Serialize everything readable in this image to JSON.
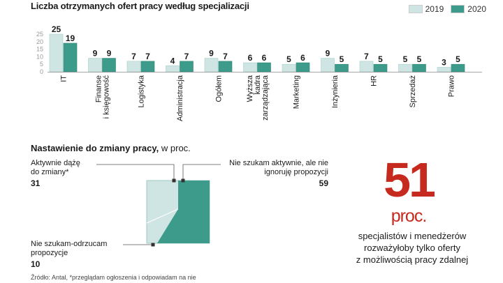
{
  "title": "Liczba otrzymanych  ofert pracy według specjalizacji",
  "legend": {
    "s2019": "2019",
    "s2020": "2020"
  },
  "colors": {
    "c2019": "#cfe5e3",
    "c2020": "#3c9b8a",
    "accent": "#c62a1e",
    "tick": "#999999"
  },
  "chart_data": {
    "type": "bar",
    "title": "Liczba otrzymanych  ofert pracy według specjalizacji",
    "categories": [
      "IT",
      "Finanse i księgowość",
      "Logistyka",
      "Administracja",
      "Ogółem",
      "Wyższa kadra zarządzająca",
      "Marketing",
      "Inżynieria",
      "HR",
      "Sprzedaż",
      "Prawo"
    ],
    "category_lines": [
      [
        "IT"
      ],
      [
        "Finanse",
        "i księgowość"
      ],
      [
        "Logistyka"
      ],
      [
        "Administracja"
      ],
      [
        "Ogółem"
      ],
      [
        "Wyższa",
        "kadra",
        "zarządzająca"
      ],
      [
        "Marketing"
      ],
      [
        "Inżynieria"
      ],
      [
        "HR"
      ],
      [
        "Sprzedaż"
      ],
      [
        "Prawo"
      ]
    ],
    "series": [
      {
        "name": "2019",
        "values": [
          25,
          9,
          7,
          4,
          9,
          6,
          5,
          9,
          7,
          5,
          3
        ]
      },
      {
        "name": "2020",
        "values": [
          19,
          9,
          7,
          7,
          7,
          6,
          6,
          5,
          5,
          5,
          5
        ]
      }
    ],
    "yticks": [
      "25",
      "20",
      "15",
      "10",
      "5",
      "0"
    ],
    "ylim": [
      0,
      25
    ],
    "legend_position": "top-right"
  },
  "attitude": {
    "heading_bold": "Nastawienie do zmiany pracy,",
    "heading_rest": " w proc.",
    "active_line1": "Aktywnie dążę",
    "active_line2": "do zmiany*",
    "active_value": "31",
    "passive_line1": "Nie szukam aktywnie, ale nie",
    "passive_line2": "ignoruję propozycji",
    "passive_value": "59",
    "reject_line1": "Nie szukam-odrzucam",
    "reject_line2": "propozycje",
    "reject_value": "10",
    "chart_data": {
      "type": "pie",
      "categories": [
        "Aktywnie dążę do zmiany*",
        "Nie szukam aktywnie, ale nie ignoruję propozycji",
        "Nie szukam-odrzucam propozycje"
      ],
      "values": [
        31,
        59,
        10
      ]
    }
  },
  "highlight": {
    "number": "51",
    "unit": "proc.",
    "line1": "specjalistów i menedżerów",
    "line2": "rozważyłoby tylko oferty",
    "line3": "z możliwością pracy zdalnej"
  },
  "source": "Źródło: Antal, *przeglądam ogłoszenia i odpowiadam na nie"
}
